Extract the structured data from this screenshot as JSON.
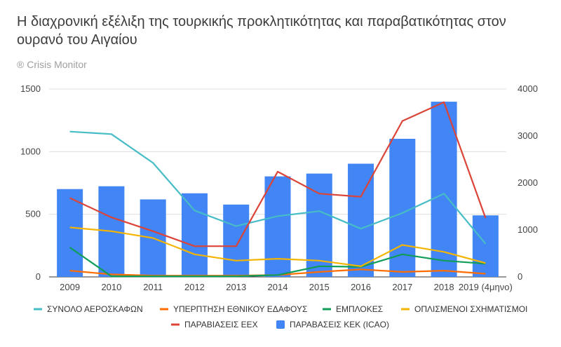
{
  "chart_data": {
    "type": "bar",
    "title": "Η διαχρονική εξέλιξη της τουρκικής προκλητικότητας και παραβατικότητας στον ουρανό του Αιγαίου",
    "subtitle": "® Crisis Monitor",
    "categories": [
      "2009",
      "2010",
      "2011",
      "2012",
      "2013",
      "2014",
      "2015",
      "2016",
      "2017",
      "2018",
      "2019 (4μηνο)"
    ],
    "left_axis": {
      "ylim": [
        0,
        1500
      ],
      "ticks": [
        "0",
        "500",
        "1000",
        "1500"
      ]
    },
    "right_axis": {
      "ylim": [
        0,
        4000
      ],
      "ticks": [
        "0",
        "1000",
        "2000",
        "3000",
        "4000"
      ]
    },
    "grid": true,
    "legend_position": "bottom",
    "series": [
      {
        "name": "ΣΥΝΟΛΟ ΑΕΡΟΣΚΑΦΩΝ",
        "type": "line",
        "axis": "left",
        "color": "#46bdc6",
        "values": [
          1160,
          1140,
          910,
          530,
          405,
          485,
          525,
          385,
          510,
          665,
          265
        ]
      },
      {
        "name": "ΥΠΕΡΠΤΗΣΗ ΕΘΝΙΚΟΥ ΕΔΑΦΟΥΣ",
        "type": "line",
        "axis": "left",
        "color": "#ff6d01",
        "values": [
          50,
          20,
          10,
          10,
          10,
          15,
          40,
          60,
          40,
          50,
          25
        ]
      },
      {
        "name": "ΕΜΠΛΟΚΕΣ",
        "type": "line",
        "axis": "left",
        "color": "#0f9d58",
        "values": [
          235,
          5,
          5,
          5,
          5,
          15,
          85,
          80,
          180,
          130,
          105
        ]
      },
      {
        "name": "ΟΠΛΙΣΜΕΝΟΙ ΣΧΗΜΑΤΙΣΜΟΙ",
        "type": "line",
        "axis": "left",
        "color": "#f4b400",
        "values": [
          395,
          365,
          310,
          180,
          130,
          145,
          130,
          85,
          255,
          200,
          110
        ]
      },
      {
        "name": "ΠΑΡΑΒΙΑΣΕΙΣ ΕΕΧ",
        "type": "line",
        "axis": "left",
        "color": "#db4437",
        "values": [
          630,
          475,
          365,
          245,
          245,
          840,
          665,
          640,
          1245,
          1395,
          470
        ]
      },
      {
        "name": "ΠΑΡΑΒΑΣΕΙΣ ΚΕΚ (ICAO)",
        "type": "bar",
        "axis": "right",
        "color": "#4285f4",
        "values": [
          1870,
          1930,
          1650,
          1780,
          1540,
          2140,
          2200,
          2410,
          2940,
          3730,
          1310
        ]
      }
    ]
  }
}
